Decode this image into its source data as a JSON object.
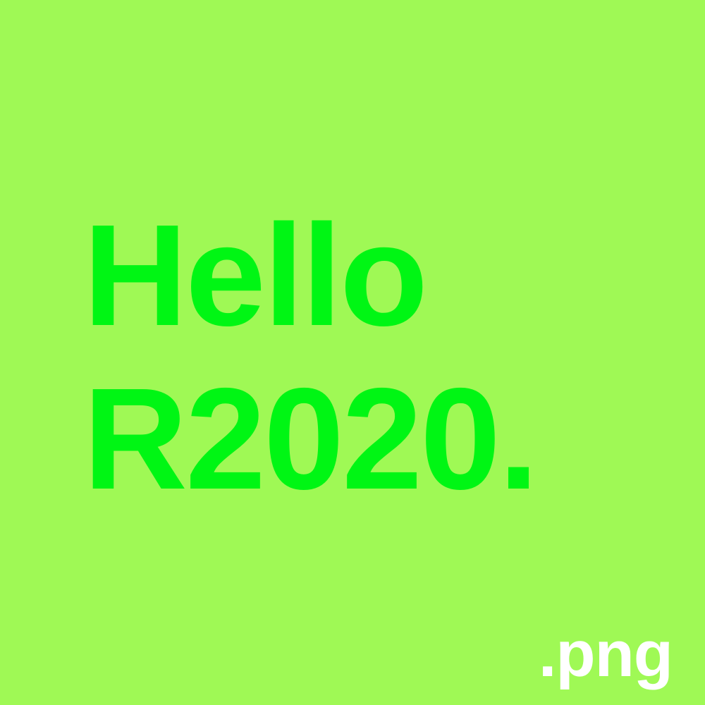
{
  "canvas": {
    "background_color": "#9ff955"
  },
  "headline": {
    "line_1": "Hello",
    "line_2": "R2020.",
    "color": "#00f614"
  },
  "extension_label": {
    "text": ".png",
    "color": "#ffffff"
  }
}
